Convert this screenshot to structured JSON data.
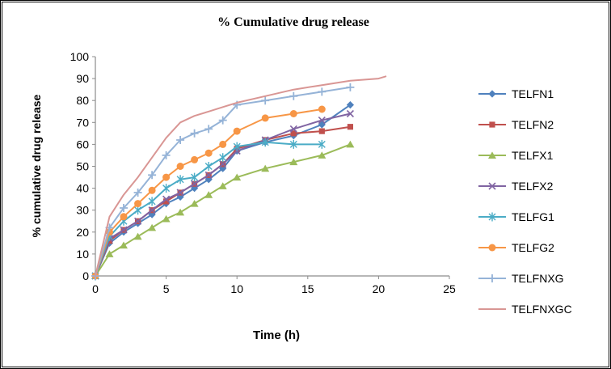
{
  "frame": {
    "background": "#ffffff",
    "border_color": "#000000"
  },
  "chart_data": {
    "type": "line",
    "title": "% Cumulative drug release",
    "xlabel": "Time (h)",
    "ylabel": "% cumulative drug release",
    "xlim": [
      0,
      25
    ],
    "ylim": [
      0,
      100
    ],
    "x_ticks": [
      0,
      5,
      10,
      15,
      20,
      25
    ],
    "y_ticks": [
      0,
      10,
      20,
      30,
      40,
      50,
      60,
      70,
      80,
      90,
      100
    ],
    "grid": false,
    "legend_position": "right",
    "axis_color": "#8c8c8c",
    "series": [
      {
        "name": "TELFN1",
        "color": "#4F81BD",
        "marker": "diamond",
        "x": [
          0,
          1,
          2,
          3,
          4,
          5,
          6,
          7,
          8,
          9,
          10,
          12,
          14,
          16,
          18
        ],
        "y": [
          0,
          15,
          20,
          24,
          28,
          33,
          36,
          40,
          44,
          49,
          57,
          61,
          64,
          69,
          78
        ]
      },
      {
        "name": "TELFN2",
        "color": "#C0504D",
        "marker": "square",
        "x": [
          0,
          1,
          2,
          3,
          4,
          5,
          6,
          7,
          8,
          9,
          10,
          12,
          14,
          16,
          18
        ],
        "y": [
          0,
          16,
          21,
          25,
          30,
          34,
          38,
          42,
          46,
          51,
          58,
          62,
          65,
          66,
          68
        ]
      },
      {
        "name": "TELFX1",
        "color": "#9BBB59",
        "marker": "triangle",
        "x": [
          0,
          1,
          2,
          3,
          4,
          5,
          6,
          7,
          8,
          9,
          10,
          12,
          14,
          16,
          18
        ],
        "y": [
          0,
          10,
          14,
          18,
          22,
          26,
          29,
          33,
          37,
          41,
          45,
          49,
          52,
          55,
          60
        ]
      },
      {
        "name": "TELFX2",
        "color": "#8064A2",
        "marker": "x",
        "x": [
          0,
          1,
          2,
          3,
          4,
          5,
          6,
          7,
          8,
          9,
          10,
          12,
          14,
          16,
          18
        ],
        "y": [
          0,
          17,
          21,
          25,
          30,
          35,
          38,
          42,
          46,
          51,
          57,
          62,
          67,
          71,
          74
        ]
      },
      {
        "name": "TELFG1",
        "color": "#4BACC6",
        "marker": "asterisk",
        "x": [
          0,
          1,
          2,
          3,
          4,
          5,
          6,
          7,
          8,
          9,
          10,
          12,
          14,
          16
        ],
        "y": [
          0,
          18,
          25,
          30,
          34,
          40,
          44,
          45,
          50,
          54,
          59,
          61,
          60,
          60
        ]
      },
      {
        "name": "TELFG2",
        "color": "#F79646",
        "marker": "circle",
        "x": [
          0,
          1,
          2,
          3,
          4,
          5,
          6,
          7,
          8,
          9,
          10,
          12,
          14,
          16
        ],
        "y": [
          0,
          20,
          27,
          33,
          39,
          45,
          50,
          53,
          56,
          60,
          66,
          72,
          74,
          76
        ]
      },
      {
        "name": "TELFNXG",
        "color": "#95B3D7",
        "marker": "plus",
        "x": [
          0,
          1,
          2,
          3,
          4,
          5,
          6,
          7,
          8,
          9,
          10,
          12,
          14,
          16,
          18
        ],
        "y": [
          0,
          22,
          31,
          38,
          46,
          55,
          62,
          65,
          67,
          71,
          78,
          80,
          82,
          84,
          86
        ]
      },
      {
        "name": "TELFNXGC",
        "color": "#D99694",
        "marker": "none",
        "x": [
          0,
          1,
          2,
          3,
          4,
          5,
          6,
          7,
          8,
          9,
          10,
          12,
          14,
          16,
          18,
          20,
          20.5
        ],
        "y": [
          0,
          27,
          37,
          45,
          54,
          63,
          70,
          73,
          75,
          77,
          79,
          82,
          85,
          87,
          89,
          90,
          91
        ]
      }
    ]
  }
}
